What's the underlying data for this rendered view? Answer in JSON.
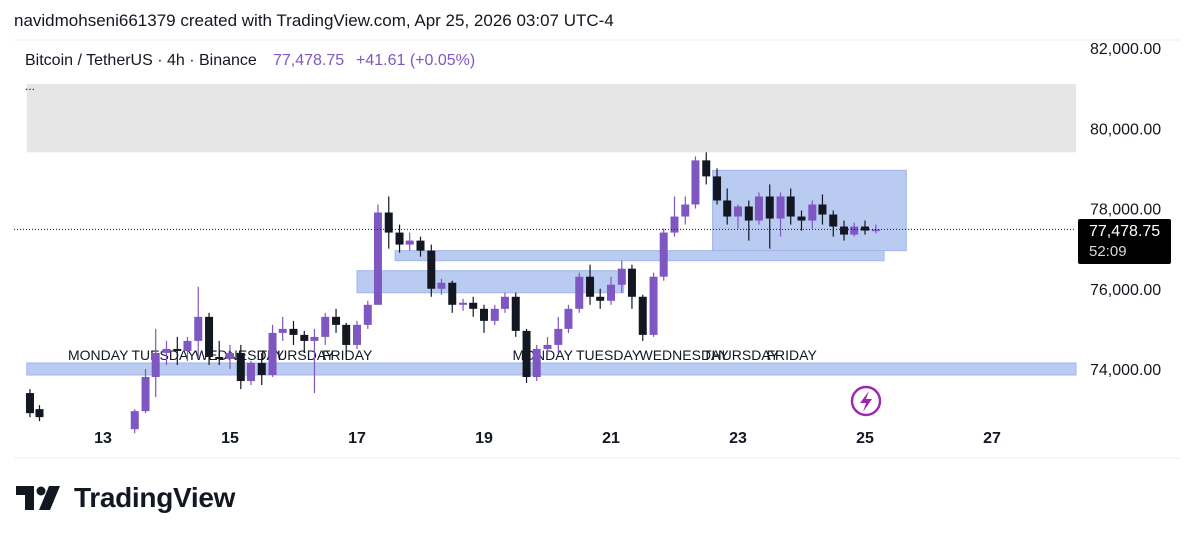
{
  "header": {
    "text": "navidmohseni661379 created with TradingView.com, Apr 25, 2026 03:07 UTC-4"
  },
  "legend": {
    "symbol": "Bitcoin / TetherUS · 4h · Binance",
    "price": "77,478.75",
    "change": "+41.61 (+0.05%)",
    "dots": "..."
  },
  "price_label": {
    "price": "77,478.75",
    "countdown": "52:09"
  },
  "brand": {
    "name": "TradingView"
  },
  "colors": {
    "up": "#7e57c2",
    "down": "#131722",
    "zone_blue": "#aec2ef",
    "zone_gray": "#e6e6e6",
    "accent": "#9c27b0"
  },
  "chart_data": {
    "type": "candlestick",
    "symbol": "Bitcoin / TetherUS",
    "interval": "4h",
    "exchange": "Binance",
    "ylim": [
      73000,
      83000
    ],
    "xlim": [
      11.8,
      29.0
    ],
    "y_ticks": [
      "82,000.00",
      "80,000.00",
      "78,000.00",
      "76,000.00",
      "74,000.00"
    ],
    "y_tick_values": [
      82000,
      80000,
      78000,
      76000,
      74000
    ],
    "x_ticks": [
      "13",
      "15",
      "17",
      "19",
      "21",
      "23",
      "25",
      "27"
    ],
    "x_tick_values": [
      13,
      15,
      17,
      19,
      21,
      23,
      25,
      27
    ],
    "day_labels": [
      {
        "text": "MONDAY",
        "x": 13.0
      },
      {
        "text": "TUESDAY",
        "x": 14.0
      },
      {
        "text": "WEDNESDAY",
        "x": 15.0
      },
      {
        "text": "THURSDAY",
        "x": 16.0
      },
      {
        "text": "FRIDAY",
        "x": 17.0
      },
      {
        "text": "MONDAY",
        "x": 20.0
      },
      {
        "text": "TUESDAY",
        "x": 21.0
      },
      {
        "text": "WEDNESDAY",
        "x": 22.0
      },
      {
        "text": "THURSDAY",
        "x": 23.0
      },
      {
        "text": "FRIDAY",
        "x": 24.0
      }
    ],
    "last_price": 77478.75,
    "zones": [
      {
        "kind": "supply",
        "x0": 11.8,
        "x1": 29.0,
        "y0": 79400,
        "y1": 81100,
        "color": "#e6e6e6"
      },
      {
        "kind": "range",
        "x0": 22.6,
        "x1": 25.65,
        "y0": 76950,
        "y1": 78950,
        "color": "#aec2ef"
      },
      {
        "kind": "support",
        "x0": 17.6,
        "x1": 25.3,
        "y0": 76700,
        "y1": 76950,
        "color": "#aec2ef"
      },
      {
        "kind": "support",
        "x0": 17.0,
        "x1": 21.2,
        "y0": 75900,
        "y1": 76450,
        "color": "#aec2ef"
      },
      {
        "kind": "support",
        "x0": 11.8,
        "x1": 29.0,
        "y0": 73850,
        "y1": 74150,
        "color": "#aec2ef"
      }
    ],
    "candles": [
      {
        "t": 11.85,
        "o": 73400,
        "h": 73500,
        "c": 72900,
        "l": 72800
      },
      {
        "t": 12.0,
        "o": 73000,
        "h": 73100,
        "c": 72800,
        "l": 72700
      },
      {
        "t": 13.5,
        "o": 72500,
        "h": 73000,
        "c": 72950,
        "l": 72400
      },
      {
        "t": 13.67,
        "o": 72950,
        "h": 74000,
        "c": 73800,
        "l": 72900
      },
      {
        "t": 13.83,
        "o": 73800,
        "h": 75000,
        "c": 74400,
        "l": 73300
      },
      {
        "t": 14.0,
        "o": 74400,
        "h": 74700,
        "c": 74500,
        "l": 74100
      },
      {
        "t": 14.17,
        "o": 74500,
        "h": 74800,
        "c": 74450,
        "l": 74100
      },
      {
        "t": 14.33,
        "o": 74450,
        "h": 74800,
        "c": 74700,
        "l": 74200
      },
      {
        "t": 14.5,
        "o": 74700,
        "h": 76050,
        "c": 75300,
        "l": 74300
      },
      {
        "t": 14.67,
        "o": 75300,
        "h": 75400,
        "c": 74300,
        "l": 74100
      },
      {
        "t": 14.83,
        "o": 74300,
        "h": 74700,
        "c": 74250,
        "l": 74100
      },
      {
        "t": 15.0,
        "o": 74250,
        "h": 74600,
        "c": 74400,
        "l": 74000
      },
      {
        "t": 15.17,
        "o": 74400,
        "h": 74600,
        "c": 73700,
        "l": 73500
      },
      {
        "t": 15.33,
        "o": 73700,
        "h": 74200,
        "c": 74150,
        "l": 73600
      },
      {
        "t": 15.5,
        "o": 74150,
        "h": 74400,
        "c": 73850,
        "l": 73600
      },
      {
        "t": 15.67,
        "o": 73850,
        "h": 75100,
        "c": 74900,
        "l": 73800
      },
      {
        "t": 15.83,
        "o": 74900,
        "h": 75300,
        "c": 75000,
        "l": 74700
      },
      {
        "t": 16.0,
        "o": 75000,
        "h": 75200,
        "c": 74850,
        "l": 74600
      },
      {
        "t": 16.17,
        "o": 74850,
        "h": 74950,
        "c": 74700,
        "l": 74400
      },
      {
        "t": 16.33,
        "o": 74700,
        "h": 75000,
        "c": 74800,
        "l": 73400
      },
      {
        "t": 16.5,
        "o": 74800,
        "h": 75400,
        "c": 75300,
        "l": 74600
      },
      {
        "t": 16.67,
        "o": 75300,
        "h": 75500,
        "c": 75100,
        "l": 74900
      },
      {
        "t": 16.83,
        "o": 75100,
        "h": 75150,
        "c": 74600,
        "l": 74300
      },
      {
        "t": 17.0,
        "o": 74600,
        "h": 75200,
        "c": 75100,
        "l": 74500
      },
      {
        "t": 17.17,
        "o": 75100,
        "h": 75700,
        "c": 75600,
        "l": 75000
      },
      {
        "t": 17.33,
        "o": 75600,
        "h": 78100,
        "c": 77900,
        "l": 75600
      },
      {
        "t": 17.5,
        "o": 77900,
        "h": 78300,
        "c": 77400,
        "l": 77000
      },
      {
        "t": 17.67,
        "o": 77400,
        "h": 77600,
        "c": 77100,
        "l": 76900
      },
      {
        "t": 17.83,
        "o": 77100,
        "h": 77400,
        "c": 77200,
        "l": 76950
      },
      {
        "t": 18.0,
        "o": 77200,
        "h": 77300,
        "c": 76950,
        "l": 76800
      },
      {
        "t": 18.17,
        "o": 76950,
        "h": 77100,
        "c": 76000,
        "l": 75800
      },
      {
        "t": 18.33,
        "o": 76000,
        "h": 76250,
        "c": 76150,
        "l": 75850
      },
      {
        "t": 18.5,
        "o": 76150,
        "h": 76200,
        "c": 75600,
        "l": 75400
      },
      {
        "t": 18.67,
        "o": 75600,
        "h": 75750,
        "c": 75650,
        "l": 75450
      },
      {
        "t": 18.83,
        "o": 75650,
        "h": 75800,
        "c": 75500,
        "l": 75300
      },
      {
        "t": 19.0,
        "o": 75500,
        "h": 75600,
        "c": 75200,
        "l": 74900
      },
      {
        "t": 19.17,
        "o": 75200,
        "h": 75600,
        "c": 75500,
        "l": 75100
      },
      {
        "t": 19.33,
        "o": 75500,
        "h": 75900,
        "c": 75800,
        "l": 75400
      },
      {
        "t": 19.5,
        "o": 75800,
        "h": 75900,
        "c": 74950,
        "l": 74800
      },
      {
        "t": 19.67,
        "o": 74950,
        "h": 75000,
        "c": 73800,
        "l": 73650
      },
      {
        "t": 19.83,
        "o": 73800,
        "h": 74600,
        "c": 74500,
        "l": 73700
      },
      {
        "t": 20.0,
        "o": 74500,
        "h": 74800,
        "c": 74600,
        "l": 74350
      },
      {
        "t": 20.17,
        "o": 74600,
        "h": 75300,
        "c": 75000,
        "l": 74400
      },
      {
        "t": 20.33,
        "o": 75000,
        "h": 75600,
        "c": 75500,
        "l": 74900
      },
      {
        "t": 20.5,
        "o": 75500,
        "h": 76400,
        "c": 76300,
        "l": 75400
      },
      {
        "t": 20.67,
        "o": 76300,
        "h": 76600,
        "c": 75800,
        "l": 75600
      },
      {
        "t": 20.83,
        "o": 75800,
        "h": 76000,
        "c": 75700,
        "l": 75500
      },
      {
        "t": 21.0,
        "o": 75700,
        "h": 76300,
        "c": 76100,
        "l": 75600
      },
      {
        "t": 21.17,
        "o": 76100,
        "h": 76700,
        "c": 76500,
        "l": 75900
      },
      {
        "t": 21.33,
        "o": 76500,
        "h": 76600,
        "c": 75800,
        "l": 75500
      },
      {
        "t": 21.5,
        "o": 75800,
        "h": 75850,
        "c": 74850,
        "l": 74700
      },
      {
        "t": 21.67,
        "o": 74850,
        "h": 76400,
        "c": 76300,
        "l": 74800
      },
      {
        "t": 21.83,
        "o": 76300,
        "h": 77500,
        "c": 77400,
        "l": 76200
      },
      {
        "t": 22.0,
        "o": 77400,
        "h": 78300,
        "c": 77800,
        "l": 77300
      },
      {
        "t": 22.17,
        "o": 77800,
        "h": 78300,
        "c": 78100,
        "l": 77600
      },
      {
        "t": 22.33,
        "o": 78100,
        "h": 79300,
        "c": 79200,
        "l": 78000
      },
      {
        "t": 22.5,
        "o": 79200,
        "h": 79400,
        "c": 78800,
        "l": 78600
      },
      {
        "t": 22.67,
        "o": 78800,
        "h": 79000,
        "c": 78200,
        "l": 78100
      },
      {
        "t": 22.83,
        "o": 78200,
        "h": 78500,
        "c": 77800,
        "l": 77600
      },
      {
        "t": 23.0,
        "o": 77800,
        "h": 78100,
        "c": 78050,
        "l": 77500
      },
      {
        "t": 23.17,
        "o": 78050,
        "h": 78200,
        "c": 77700,
        "l": 77200
      },
      {
        "t": 23.33,
        "o": 77700,
        "h": 78400,
        "c": 78300,
        "l": 77600
      },
      {
        "t": 23.5,
        "o": 78300,
        "h": 78600,
        "c": 77750,
        "l": 77000
      },
      {
        "t": 23.67,
        "o": 77750,
        "h": 78400,
        "c": 78300,
        "l": 77300
      },
      {
        "t": 23.83,
        "o": 78300,
        "h": 78500,
        "c": 77800,
        "l": 77600
      },
      {
        "t": 24.0,
        "o": 77800,
        "h": 77950,
        "c": 77700,
        "l": 77450
      },
      {
        "t": 24.17,
        "o": 77700,
        "h": 78200,
        "c": 78100,
        "l": 77500
      },
      {
        "t": 24.33,
        "o": 78100,
        "h": 78350,
        "c": 77850,
        "l": 77600
      },
      {
        "t": 24.5,
        "o": 77850,
        "h": 77950,
        "c": 77550,
        "l": 77300
      },
      {
        "t": 24.67,
        "o": 77550,
        "h": 77700,
        "c": 77350,
        "l": 77200
      },
      {
        "t": 24.83,
        "o": 77350,
        "h": 77650,
        "c": 77550,
        "l": 77300
      },
      {
        "t": 25.0,
        "o": 77550,
        "h": 77700,
        "c": 77450,
        "l": 77350
      },
      {
        "t": 25.17,
        "o": 77437,
        "h": 77600,
        "c": 77478.75,
        "l": 77380
      }
    ]
  }
}
